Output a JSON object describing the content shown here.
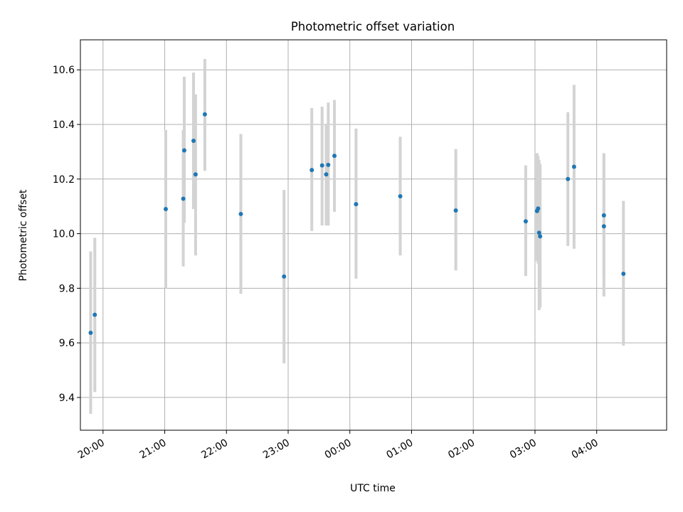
{
  "chart_data": {
    "type": "scatter",
    "title": "Photometric offset variation",
    "xlabel": "UTC time",
    "ylabel": "Photometric offset",
    "x_ticks": [
      "20:00",
      "21:00",
      "22:00",
      "23:00",
      "00:00",
      "01:00",
      "02:00",
      "03:00",
      "04:00"
    ],
    "y_ticks": [
      "9.4",
      "9.6",
      "9.8",
      "10.0",
      "10.2",
      "10.4",
      "10.6"
    ],
    "xlim": [
      "19:38",
      "05:08"
    ],
    "ylim": [
      9.28,
      10.71
    ],
    "grid": true,
    "colors": {
      "marker": "#1f77b4",
      "errorbar": "#d3d3d3",
      "grid": "#b0b0b0",
      "axes": "#000000"
    },
    "points": [
      {
        "t": "19:48",
        "y": 9.637,
        "lo": 9.34,
        "hi": 9.935
      },
      {
        "t": "19:52",
        "y": 9.703,
        "lo": 9.42,
        "hi": 9.985
      },
      {
        "t": "21:01",
        "y": 10.09,
        "lo": 9.8,
        "hi": 10.38
      },
      {
        "t": "21:18",
        "y": 10.128,
        "lo": 9.88,
        "hi": 10.38
      },
      {
        "t": "21:19",
        "y": 10.305,
        "lo": 10.04,
        "hi": 10.575
      },
      {
        "t": "21:28",
        "y": 10.34,
        "lo": 10.09,
        "hi": 10.59
      },
      {
        "t": "21:30",
        "y": 10.217,
        "lo": 9.92,
        "hi": 10.51
      },
      {
        "t": "21:39",
        "y": 10.437,
        "lo": 10.23,
        "hi": 10.64
      },
      {
        "t": "22:14",
        "y": 10.072,
        "lo": 9.78,
        "hi": 10.365
      },
      {
        "t": "22:56",
        "y": 9.843,
        "lo": 9.525,
        "hi": 10.16
      },
      {
        "t": "23:23",
        "y": 10.233,
        "lo": 10.01,
        "hi": 10.46
      },
      {
        "t": "23:33",
        "y": 10.25,
        "lo": 10.03,
        "hi": 10.465
      },
      {
        "t": "23:37",
        "y": 10.217,
        "lo": 10.03,
        "hi": 10.4
      },
      {
        "t": "23:39",
        "y": 10.252,
        "lo": 10.03,
        "hi": 10.48
      },
      {
        "t": "23:45",
        "y": 10.285,
        "lo": 10.08,
        "hi": 10.49
      },
      {
        "t": "00:06",
        "y": 10.108,
        "lo": 9.835,
        "hi": 10.385
      },
      {
        "t": "00:49",
        "y": 10.137,
        "lo": 9.92,
        "hi": 10.355
      },
      {
        "t": "01:43",
        "y": 10.085,
        "lo": 9.865,
        "hi": 10.31
      },
      {
        "t": "02:51",
        "y": 10.045,
        "lo": 9.845,
        "hi": 10.25
      },
      {
        "t": "03:02",
        "y": 10.083,
        "lo": 9.9,
        "hi": 10.295
      },
      {
        "t": "03:03",
        "y": 10.092,
        "lo": 9.89,
        "hi": 10.285
      },
      {
        "t": "03:04",
        "y": 10.003,
        "lo": 9.72,
        "hi": 10.27
      },
      {
        "t": "03:05",
        "y": 9.99,
        "lo": 9.73,
        "hi": 10.255
      },
      {
        "t": "03:32",
        "y": 10.2,
        "lo": 9.955,
        "hi": 10.445
      },
      {
        "t": "03:38",
        "y": 10.245,
        "lo": 9.945,
        "hi": 10.545
      },
      {
        "t": "04:07",
        "y": 10.067,
        "lo": 9.84,
        "hi": 10.295
      },
      {
        "t": "04:07",
        "y": 10.027,
        "lo": 9.77,
        "hi": 10.29
      },
      {
        "t": "04:26",
        "y": 9.853,
        "lo": 9.59,
        "hi": 10.12
      }
    ]
  }
}
